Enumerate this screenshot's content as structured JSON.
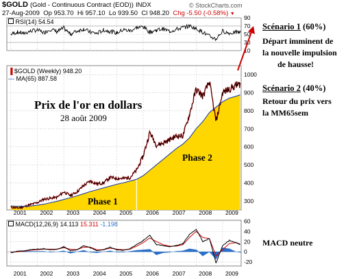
{
  "header": {
    "symbol": "$GOLD",
    "description": "(Gold - Continuous Contract (EOD))",
    "exchange": "INDX",
    "date": "27-Aug-2009",
    "open": "Op 953.70",
    "high": "Hi 957.10",
    "low": "Lo 939.50",
    "close": "Cl 948.20",
    "change": "Chg -5.50 (-0.58%)",
    "change_arrow": "▼",
    "brand": "© StockCharts.com"
  },
  "annotations": {
    "overlay_title": "Prix de l'or en dollars",
    "overlay_date": "28 août 2009",
    "phase1": "Phase 1",
    "phase2": "Phase 2",
    "scenario1_head": "Scénario 1",
    "scenario1_pct": "(60%)",
    "scenario1_lines": [
      "Départ imminent de",
      "la nouvelle impulsion",
      "de hausse!"
    ],
    "scenario2_head": "Scénario 2",
    "scenario2_pct": "(40%)",
    "scenario2_lines": [
      "Retour du prix vers",
      "la MM65sem"
    ],
    "macd_note": "MACD neutre"
  },
  "colors": {
    "price": "#000000",
    "price_up": "#cc0000",
    "ma": "#1f3fa0",
    "fill_phase": "#ffd700",
    "macd_line": "#000000",
    "macd_signal": "#cc0000",
    "macd_hist": "#2a6fc9",
    "arrow": "#cc0000"
  },
  "chart_data": {
    "type": "line",
    "panels": [
      {
        "name": "RSI",
        "legend": "RSI(14) 54.54",
        "yticks": [
          "90",
          "70",
          "50",
          "30",
          "10"
        ],
        "ylim": [
          10,
          90
        ],
        "x": [
          2001,
          2001.25,
          2001.5,
          2001.75,
          2002,
          2002.25,
          2002.5,
          2002.75,
          2003,
          2003.25,
          2003.5,
          2003.75,
          2004,
          2004.25,
          2004.5,
          2004.75,
          2005,
          2005.25,
          2005.5,
          2005.75,
          2006,
          2006.25,
          2006.5,
          2006.75,
          2007,
          2007.25,
          2007.5,
          2007.75,
          2008,
          2008.25,
          2008.5,
          2008.75,
          2009,
          2009.25,
          2009.5,
          2009.66
        ],
        "values": [
          50,
          55,
          52,
          58,
          60,
          54,
          62,
          56,
          65,
          50,
          58,
          63,
          55,
          52,
          60,
          57,
          53,
          61,
          58,
          66,
          68,
          55,
          60,
          63,
          57,
          62,
          66,
          70,
          64,
          55,
          45,
          38,
          58,
          52,
          55,
          54.54
        ]
      },
      {
        "name": "Price",
        "legend_symbol": "$GOLD (Weekly) 948.20",
        "legend_ma": "MA(65) 887.58",
        "yticks": [
          "1000",
          "900",
          "800",
          "700",
          "600",
          "500",
          "400",
          "300"
        ],
        "ylim": [
          250,
          1050
        ],
        "x": [
          2001,
          2001.25,
          2001.5,
          2001.75,
          2002,
          2002.25,
          2002.5,
          2002.75,
          2003,
          2003.25,
          2003.5,
          2003.75,
          2004,
          2004.25,
          2004.5,
          2004.75,
          2005,
          2005.25,
          2005.5,
          2005.75,
          2006,
          2006.25,
          2006.5,
          2006.75,
          2007,
          2007.25,
          2007.5,
          2007.75,
          2008,
          2008.25,
          2008.5,
          2008.75,
          2009,
          2009.25,
          2009.5,
          2009.66
        ],
        "series": [
          {
            "name": "$GOLD (Weekly)",
            "values": [
              266,
              260,
              268,
              280,
              290,
              310,
              315,
              320,
              350,
              330,
              350,
              385,
              410,
              395,
              400,
              430,
              425,
              425,
              430,
              470,
              550,
              680,
              610,
              620,
              640,
              660,
              660,
              780,
              920,
              880,
              960,
              740,
              900,
              920,
              940,
              948
            ]
          },
          {
            "name": "MA(65)",
            "values": [
              272,
              270,
              270,
              272,
              276,
              282,
              290,
              298,
              308,
              318,
              328,
              340,
              352,
              362,
              372,
              382,
              392,
              400,
              410,
              420,
              440,
              470,
              500,
              530,
              560,
              590,
              615,
              650,
              700,
              740,
              790,
              820,
              850,
              870,
              880,
              888
            ]
          }
        ]
      },
      {
        "name": "MACD",
        "legend_prefix": "MACD(12,26,9)",
        "legend_macd": "14.113",
        "legend_signal": "15.311",
        "legend_hist": "-1.198",
        "yticks": [
          "60",
          "40",
          "20",
          "0",
          "-20"
        ],
        "ylim": [
          -28,
          62
        ],
        "x": [
          2001,
          2001.25,
          2001.5,
          2001.75,
          2002,
          2002.25,
          2002.5,
          2002.75,
          2003,
          2003.25,
          2003.5,
          2003.75,
          2004,
          2004.25,
          2004.5,
          2004.75,
          2005,
          2005.25,
          2005.5,
          2005.75,
          2006,
          2006.25,
          2006.5,
          2006.75,
          2007,
          2007.25,
          2007.5,
          2007.75,
          2008,
          2008.25,
          2008.5,
          2008.75,
          2009,
          2009.25,
          2009.5,
          2009.66
        ],
        "series": [
          {
            "name": "MACD",
            "values": [
              -2,
              1,
              2,
              4,
              5,
              6,
              4,
              5,
              10,
              2,
              4,
              12,
              8,
              2,
              4,
              9,
              4,
              3,
              6,
              14,
              22,
              32,
              14,
              12,
              10,
              12,
              16,
              34,
              44,
              20,
              26,
              -22,
              12,
              22,
              18,
              14.1
            ]
          },
          {
            "name": "Signal",
            "values": [
              -1,
              0,
              1,
              3,
              4,
              5,
              5,
              5,
              8,
              5,
              4,
              9,
              9,
              4,
              4,
              7,
              5,
              4,
              5,
              11,
              18,
              27,
              20,
              14,
              11,
              11,
              14,
              28,
              40,
              28,
              26,
              -8,
              4,
              16,
              18,
              15.3
            ]
          },
          {
            "name": "Histogram",
            "values": [
              -1,
              1,
              1,
              1,
              1,
              1,
              -1,
              0,
              2,
              -3,
              0,
              3,
              -1,
              -2,
              0,
              2,
              -1,
              -1,
              1,
              3,
              4,
              5,
              -6,
              -2,
              -1,
              1,
              2,
              6,
              4,
              -8,
              0,
              -14,
              8,
              6,
              0,
              -1.2
            ]
          }
        ]
      }
    ],
    "x_ticks": [
      "2001",
      "2002",
      "2003",
      "2004",
      "2005",
      "2006",
      "2007",
      "2008",
      "2009"
    ],
    "xlim": [
      2000.85,
      2009.7
    ]
  }
}
